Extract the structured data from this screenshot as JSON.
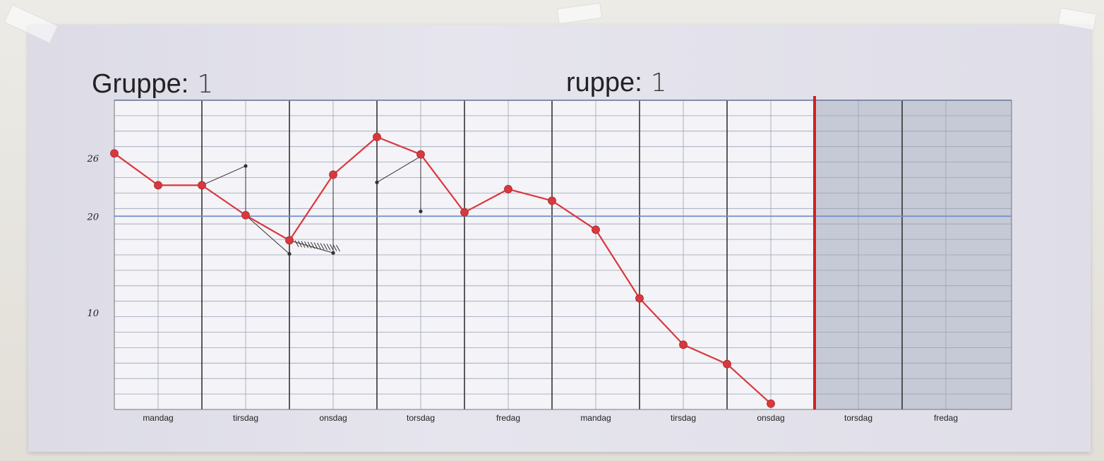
{
  "titles": [
    {
      "label": "Gruppe:",
      "value": "1"
    },
    {
      "label": "ruppe:",
      "value": "1"
    }
  ],
  "colors": {
    "line": "#d9383e",
    "grid": "#9aa3b5",
    "blue_line": "#6f8fcc",
    "day_line": "#333333",
    "red_divider": "#d42020",
    "shaded": "#c6c9d6",
    "pen": "#333333"
  },
  "chart_data": {
    "type": "line",
    "title": "Gruppe: 1",
    "ylim": [
      0,
      32
    ],
    "yticks": [
      {
        "value": 26,
        "label": "26"
      },
      {
        "value": 20,
        "label": "20"
      },
      {
        "value": 10,
        "label": "10"
      }
    ],
    "reference_lines": [
      20
    ],
    "categories": [
      "mandag",
      "tirsdag",
      "onsdag",
      "torsdag",
      "fredag",
      "mandag",
      "tirsdag",
      "onsdag",
      "torsdag",
      "fredag"
    ],
    "shaded_from_index": 8,
    "series": [
      {
        "points": [
          {
            "x": 0.0,
            "y": 26.5
          },
          {
            "x": 0.5,
            "y": 23.2
          },
          {
            "x": 1.0,
            "y": 23.2
          },
          {
            "x": 1.5,
            "y": 20.1
          },
          {
            "x": 2.0,
            "y": 17.5
          },
          {
            "x": 2.5,
            "y": 24.3
          },
          {
            "x": 3.0,
            "y": 28.2
          },
          {
            "x": 3.5,
            "y": 26.4
          },
          {
            "x": 4.0,
            "y": 20.4
          },
          {
            "x": 4.5,
            "y": 22.8
          },
          {
            "x": 5.0,
            "y": 21.6
          },
          {
            "x": 5.5,
            "y": 18.6
          },
          {
            "x": 6.0,
            "y": 11.5
          },
          {
            "x": 6.5,
            "y": 6.7
          },
          {
            "x": 7.0,
            "y": 4.7
          },
          {
            "x": 7.5,
            "y": 0.6
          }
        ]
      }
    ],
    "pen_marks": {
      "lines": [
        [
          {
            "x": 1.0,
            "y": 23.2
          },
          {
            "x": 1.5,
            "y": 25.2
          }
        ],
        [
          {
            "x": 1.5,
            "y": 25.2
          },
          {
            "x": 1.5,
            "y": 20.1
          }
        ],
        [
          {
            "x": 1.5,
            "y": 20.1
          },
          {
            "x": 2.0,
            "y": 16.1
          }
        ],
        [
          {
            "x": 2.0,
            "y": 17.5
          },
          {
            "x": 2.0,
            "y": 16.1
          }
        ],
        [
          {
            "x": 2.0,
            "y": 17.5
          },
          {
            "x": 2.5,
            "y": 16.2
          }
        ],
        [
          {
            "x": 2.5,
            "y": 24.3
          },
          {
            "x": 2.5,
            "y": 16.2
          }
        ],
        [
          {
            "x": 3.0,
            "y": 28.2
          },
          {
            "x": 3.0,
            "y": 23.5
          }
        ],
        [
          {
            "x": 3.0,
            "y": 23.5
          },
          {
            "x": 3.5,
            "y": 26.2
          }
        ],
        [
          {
            "x": 3.5,
            "y": 26.2
          },
          {
            "x": 3.5,
            "y": 20.5
          }
        ]
      ],
      "dots": [
        {
          "x": 1.5,
          "y": 25.2
        },
        {
          "x": 2.0,
          "y": 16.1
        },
        {
          "x": 2.5,
          "y": 16.2
        },
        {
          "x": 3.0,
          "y": 23.5
        },
        {
          "x": 3.5,
          "y": 20.5
        }
      ]
    }
  }
}
